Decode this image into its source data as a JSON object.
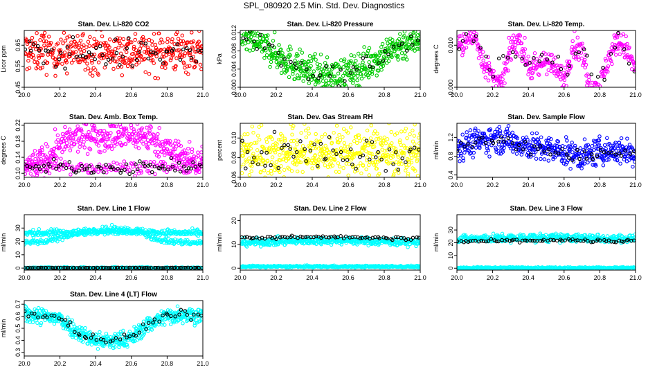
{
  "figure": {
    "title": "SPL_080920  2.5 Min. Std. Dev. Diagnostics"
  },
  "colors": {
    "background": "#ffffff",
    "frame": "#000000",
    "secondary_series": "#000000"
  },
  "chart_data": [
    {
      "type": "scatter",
      "title": "Stan. Dev. Li-820 CO2",
      "ylabel": "Licor ppm",
      "xlim": [
        20.0,
        21.0
      ],
      "ylim": [
        0.45,
        0.72
      ],
      "x_ticks": [
        "20.0",
        "20.2",
        "20.4",
        "20.6",
        "20.8",
        "21.0"
      ],
      "y_ticks": [
        "0.45",
        "0.55",
        "0.65"
      ],
      "y_tick_values": [
        0.45,
        0.55,
        0.65
      ],
      "series": [
        {
          "color": "#ff0000",
          "profile": [
            [
              20.0,
              0.62
            ],
            [
              20.25,
              0.62
            ],
            [
              20.5,
              0.62
            ],
            [
              20.75,
              0.62
            ],
            [
              21.0,
              0.62
            ]
          ],
          "spread": 0.05,
          "n": 420
        },
        {
          "color": "#000000",
          "profile": [
            [
              20.0,
              0.61
            ],
            [
              21.0,
              0.61
            ]
          ],
          "spread": 0.035,
          "n": 60
        }
      ]
    },
    {
      "type": "scatter",
      "title": "Stan. Dev. Li-820 Pressure",
      "ylabel": "kPa",
      "xlim": [
        20.0,
        21.0
      ],
      "ylim": [
        0.0,
        0.0125
      ],
      "x_ticks": [
        "20.0",
        "20.2",
        "20.4",
        "20.6",
        "20.8",
        "21.0"
      ],
      "y_ticks": [
        "0.000",
        "0.004",
        "0.008",
        "0.012"
      ],
      "y_tick_values": [
        0.0,
        0.004,
        0.008,
        0.012
      ],
      "series": [
        {
          "color": "#00cc00",
          "profile": [
            [
              20.0,
              0.0115
            ],
            [
              20.12,
              0.0095
            ],
            [
              20.25,
              0.006
            ],
            [
              20.4,
              0.003
            ],
            [
              20.5,
              0.0025
            ],
            [
              20.6,
              0.003
            ],
            [
              20.75,
              0.006
            ],
            [
              20.88,
              0.009
            ],
            [
              21.0,
              0.011
            ]
          ],
          "spread": 0.0018,
          "n": 520
        },
        {
          "color": "#000000",
          "profile": [
            [
              20.0,
              0.0115
            ],
            [
              20.12,
              0.0095
            ],
            [
              20.25,
              0.006
            ],
            [
              20.4,
              0.003
            ],
            [
              20.5,
              0.0025
            ],
            [
              20.6,
              0.003
            ],
            [
              20.75,
              0.006
            ],
            [
              20.88,
              0.009
            ],
            [
              21.0,
              0.011
            ]
          ],
          "spread": 0.0012,
          "n": 45
        }
      ]
    },
    {
      "type": "scatter",
      "title": "Stan. Dev. Li-820 Temp.",
      "ylabel": "degrees C",
      "xlim": [
        20.0,
        21.0
      ],
      "ylim": [
        0.0,
        0.0135
      ],
      "x_ticks": [
        "20.0",
        "20.2",
        "20.4",
        "20.6",
        "20.8",
        "21.0"
      ],
      "y_ticks": [
        "0.000",
        "0.010"
      ],
      "y_tick_values": [
        0.0,
        0.01
      ],
      "series": [
        {
          "color": "#ff00ff",
          "profile": [
            [
              20.0,
              0.01
            ],
            [
              20.05,
              0.011
            ],
            [
              20.1,
              0.0125
            ],
            [
              20.15,
              0.006
            ],
            [
              20.2,
              0.002
            ],
            [
              20.25,
              0.0
            ],
            [
              20.3,
              0.009
            ],
            [
              20.35,
              0.0115
            ],
            [
              20.4,
              0.005
            ],
            [
              20.45,
              0.004
            ],
            [
              20.5,
              0.007
            ],
            [
              20.55,
              0.004
            ],
            [
              20.6,
              0.002
            ],
            [
              20.65,
              0.01
            ],
            [
              20.7,
              0.0085
            ],
            [
              20.75,
              0.0
            ],
            [
              20.8,
              0.0
            ],
            [
              20.85,
              0.007
            ],
            [
              20.9,
              0.011
            ],
            [
              20.95,
              0.009
            ],
            [
              21.0,
              0.004
            ]
          ],
          "spread": 0.0015,
          "n": 420
        },
        {
          "color": "#000000",
          "profile": [
            [
              20.0,
              0.01
            ],
            [
              20.1,
              0.012
            ],
            [
              20.2,
              0.003
            ],
            [
              20.3,
              0.009
            ],
            [
              20.4,
              0.005
            ],
            [
              20.5,
              0.007
            ],
            [
              20.6,
              0.003
            ],
            [
              20.7,
              0.008
            ],
            [
              20.8,
              0.001
            ],
            [
              20.9,
              0.011
            ],
            [
              21.0,
              0.005
            ]
          ],
          "spread": 0.0012,
          "n": 40
        }
      ]
    },
    {
      "type": "scatter",
      "title": "Stan. Dev. Amb. Box Temp.",
      "ylabel": "degrees C",
      "xlim": [
        20.0,
        21.0
      ],
      "ylim": [
        0.09,
        0.225
      ],
      "x_ticks": [
        "20.0",
        "20.2",
        "20.4",
        "20.6",
        "20.8",
        "21.0"
      ],
      "y_ticks": [
        "0.10",
        "0.14",
        "0.18",
        "0.22"
      ],
      "y_tick_values": [
        0.1,
        0.14,
        0.18,
        0.22
      ],
      "series": [
        {
          "color": "#ff00ff",
          "profile": [
            [
              20.0,
              0.115
            ],
            [
              20.1,
              0.13
            ],
            [
              20.2,
              0.17
            ],
            [
              20.3,
              0.19
            ],
            [
              20.4,
              0.195
            ],
            [
              20.5,
              0.19
            ],
            [
              20.6,
              0.195
            ],
            [
              20.7,
              0.19
            ],
            [
              20.8,
              0.16
            ],
            [
              20.9,
              0.14
            ],
            [
              21.0,
              0.13
            ]
          ],
          "spread": 0.018,
          "n": 430
        },
        {
          "color": "#ff00ff",
          "profile": [
            [
              20.0,
              0.115
            ],
            [
              21.0,
              0.115
            ]
          ],
          "spread": 0.008,
          "n": 160
        },
        {
          "color": "#000000",
          "profile": [
            [
              20.0,
              0.115
            ],
            [
              21.0,
              0.115
            ]
          ],
          "spread": 0.008,
          "n": 70
        }
      ]
    },
    {
      "type": "scatter",
      "title": "Stan. Dev. Gas Stream RH",
      "ylabel": "percent",
      "xlim": [
        20.0,
        21.0
      ],
      "ylim": [
        0.06,
        0.115
      ],
      "x_ticks": [
        "20.0",
        "20.2",
        "20.4",
        "20.6",
        "20.8",
        "21.0"
      ],
      "y_ticks": [
        "0.06",
        "0.08",
        "0.10"
      ],
      "y_tick_values": [
        0.06,
        0.08,
        0.1
      ],
      "series": [
        {
          "color": "#ffff00",
          "profile": [
            [
              20.0,
              0.085
            ],
            [
              21.0,
              0.085
            ]
          ],
          "spread": 0.013,
          "n": 520
        },
        {
          "color": "#000000",
          "profile": [
            [
              20.0,
              0.085
            ],
            [
              21.0,
              0.085
            ]
          ],
          "spread": 0.01,
          "n": 55
        }
      ]
    },
    {
      "type": "scatter",
      "title": "Stan. Dev. Sample Flow",
      "ylabel": "ml/min",
      "xlim": [
        20.0,
        21.0
      ],
      "ylim": [
        0.35,
        1.5
      ],
      "x_ticks": [
        "20.0",
        "20.2",
        "20.4",
        "20.6",
        "20.8",
        "21.0"
      ],
      "y_ticks": [
        "0.4",
        "0.8",
        "1.2"
      ],
      "y_tick_values": [
        0.4,
        0.8,
        1.2
      ],
      "series": [
        {
          "color": "#0000ff",
          "profile": [
            [
              20.0,
              1.0
            ],
            [
              20.1,
              1.1
            ],
            [
              20.2,
              1.18
            ],
            [
              20.3,
              1.12
            ],
            [
              20.4,
              1.02
            ],
            [
              20.5,
              0.95
            ],
            [
              20.6,
              0.88
            ],
            [
              20.7,
              0.8
            ],
            [
              20.8,
              0.9
            ],
            [
              20.9,
              0.92
            ],
            [
              21.0,
              0.85
            ]
          ],
          "spread": 0.14,
          "n": 480
        },
        {
          "color": "#000000",
          "profile": [
            [
              20.0,
              1.0
            ],
            [
              20.2,
              1.15
            ],
            [
              20.4,
              1.0
            ],
            [
              20.6,
              0.85
            ],
            [
              20.8,
              0.85
            ],
            [
              21.0,
              0.85
            ]
          ],
          "spread": 0.08,
          "n": 50
        }
      ]
    },
    {
      "type": "scatter",
      "title": "Stan. Dev. Line 1 Flow",
      "ylabel": "ml/min",
      "xlim": [
        20.0,
        21.0
      ],
      "ylim": [
        -1.5,
        40
      ],
      "x_ticks": [
        "20.0",
        "20.2",
        "20.4",
        "20.6",
        "20.8",
        "21.0"
      ],
      "y_ticks": [
        "0",
        "10",
        "20",
        "30"
      ],
      "y_tick_values": [
        0,
        10,
        20,
        30
      ],
      "series": [
        {
          "color": "#00ffff",
          "profile": [
            [
              20.0,
              26
            ],
            [
              20.3,
              27
            ],
            [
              20.5,
              29
            ],
            [
              20.7,
              27
            ],
            [
              21.0,
              26
            ]
          ],
          "spread": 1.2,
          "n": 330
        },
        {
          "color": "#00ffff",
          "profile": [
            [
              20.0,
              19
            ],
            [
              20.12,
              19.5
            ],
            [
              20.25,
              25
            ],
            [
              20.35,
              27
            ],
            [
              20.65,
              27
            ],
            [
              20.75,
              21
            ],
            [
              20.85,
              19.5
            ],
            [
              21.0,
              19
            ]
          ],
          "spread": 1.0,
          "n": 250
        },
        {
          "color": "#00ffff",
          "profile": [
            [
              20.0,
              0.2
            ],
            [
              21.0,
              0.2
            ]
          ],
          "spread": 0.3,
          "n": 220
        },
        {
          "color": "#000000",
          "profile": [
            [
              20.0,
              0.2
            ],
            [
              21.0,
              0.2
            ]
          ],
          "spread": 0.1,
          "n": 90
        }
      ]
    },
    {
      "type": "scatter",
      "title": "Stan. Dev. Line 2 Flow",
      "ylabel": "ml/min",
      "xlim": [
        20.0,
        21.0
      ],
      "ylim": [
        -0.8,
        22.5
      ],
      "x_ticks": [
        "20.0",
        "20.2",
        "20.4",
        "20.6",
        "20.8",
        "21.0"
      ],
      "y_ticks": [
        "0",
        "10",
        "20"
      ],
      "y_tick_values": [
        0,
        10,
        20
      ],
      "series": [
        {
          "color": "#00ffff",
          "profile": [
            [
              20.0,
              10.8
            ],
            [
              20.5,
              11.8
            ],
            [
              21.0,
              10.8
            ]
          ],
          "spread": 0.8,
          "n": 420
        },
        {
          "color": "#00ffff",
          "profile": [
            [
              20.0,
              0.7
            ],
            [
              21.0,
              0.7
            ]
          ],
          "spread": 0.2,
          "n": 300
        },
        {
          "color": "#000000",
          "profile": [
            [
              20.0,
              12.5
            ],
            [
              20.5,
              13.3
            ],
            [
              21.0,
              12.5
            ]
          ],
          "spread": 0.35,
          "n": 70
        }
      ]
    },
    {
      "type": "scatter",
      "title": "Stan. Dev. Line 3 Flow",
      "ylabel": "ml/min",
      "xlim": [
        20.0,
        21.0
      ],
      "ylim": [
        -1.5,
        42
      ],
      "x_ticks": [
        "20.0",
        "20.2",
        "20.4",
        "20.6",
        "20.8",
        "21.0"
      ],
      "y_ticks": [
        "0",
        "10",
        "20",
        "30"
      ],
      "y_tick_values": [
        0,
        10,
        20,
        30
      ],
      "series": [
        {
          "color": "#00ffff",
          "profile": [
            [
              20.0,
              23
            ],
            [
              20.5,
              24
            ],
            [
              21.0,
              23
            ]
          ],
          "spread": 1.6,
          "n": 430
        },
        {
          "color": "#00ffff",
          "profile": [
            [
              20.0,
              0.3
            ],
            [
              21.0,
              0.3
            ]
          ],
          "spread": 0.3,
          "n": 280
        },
        {
          "color": "#000000",
          "profile": [
            [
              20.0,
              21
            ],
            [
              20.5,
              22
            ],
            [
              21.0,
              21
            ]
          ],
          "spread": 0.6,
          "n": 70
        }
      ]
    },
    {
      "type": "scatter",
      "title": "Stan. Dev. Line 4 (LT) Flow",
      "ylabel": "ml/min",
      "xlim": [
        20.0,
        21.0
      ],
      "ylim": [
        0.27,
        0.73
      ],
      "x_ticks": [
        "20.0",
        "20.2",
        "20.4",
        "20.6",
        "20.8",
        "21.0"
      ],
      "y_ticks": [
        "0.3",
        "0.4",
        "0.5",
        "0.6",
        "0.7"
      ],
      "y_tick_values": [
        0.3,
        0.4,
        0.5,
        0.6,
        0.7
      ],
      "series": [
        {
          "color": "#00ffff",
          "profile": [
            [
              20.0,
              0.62
            ],
            [
              20.1,
              0.6
            ],
            [
              20.2,
              0.58
            ],
            [
              20.3,
              0.47
            ],
            [
              20.4,
              0.4
            ],
            [
              20.5,
              0.39
            ],
            [
              20.6,
              0.42
            ],
            [
              20.7,
              0.54
            ],
            [
              20.8,
              0.6
            ],
            [
              20.9,
              0.62
            ],
            [
              21.0,
              0.6
            ]
          ],
          "spread": 0.035,
          "n": 520
        },
        {
          "color": "#000000",
          "profile": [
            [
              20.0,
              0.62
            ],
            [
              20.1,
              0.6
            ],
            [
              20.2,
              0.58
            ],
            [
              20.3,
              0.47
            ],
            [
              20.4,
              0.41
            ],
            [
              20.5,
              0.4
            ],
            [
              20.6,
              0.43
            ],
            [
              20.7,
              0.54
            ],
            [
              20.8,
              0.6
            ],
            [
              20.9,
              0.62
            ],
            [
              21.0,
              0.61
            ]
          ],
          "spread": 0.018,
          "n": 55
        }
      ]
    }
  ]
}
